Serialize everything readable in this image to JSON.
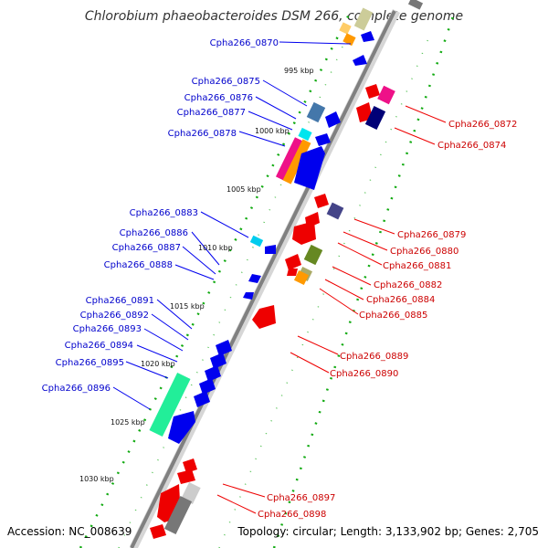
{
  "title": "Chlorobium phaeobacteroides DSM 266, complete genome",
  "footer": {
    "accession": "Accession: NC_008639",
    "summary": "Topology: circular; Length: 3,133,902 bp; Genes: 2,705"
  },
  "colors": {
    "minus_strand": "#0000ee",
    "plus_strand": "#ee0000",
    "backbone": "#808080",
    "dotted_guides": "#11aa11",
    "label_minus": "#0000cc",
    "label_plus": "#cc0000"
  },
  "position_markers": [
    "995 kbp",
    "1000 kbp",
    "1005 kbp",
    "1010 kbp",
    "1015 kbp",
    "1020 kbp",
    "1025 kbp",
    "1030 kbp"
  ],
  "genes_minus_strand": [
    "Cpha266_0870",
    "Cpha266_0875",
    "Cpha266_0876",
    "Cpha266_0877",
    "Cpha266_0878",
    "Cpha266_0883",
    "Cpha266_0886",
    "Cpha266_0887",
    "Cpha266_0888",
    "Cpha266_0891",
    "Cpha266_0892",
    "Cpha266_0893",
    "Cpha266_0894",
    "Cpha266_0895",
    "Cpha266_0896"
  ],
  "genes_plus_strand": [
    "Cpha266_0872",
    "Cpha266_0874",
    "Cpha266_0879",
    "Cpha266_0880",
    "Cpha266_0881",
    "Cpha266_0882",
    "Cpha266_0884",
    "Cpha266_0885",
    "Cpha266_0889",
    "Cpha266_0890",
    "Cpha266_0897",
    "Cpha266_0898"
  ]
}
